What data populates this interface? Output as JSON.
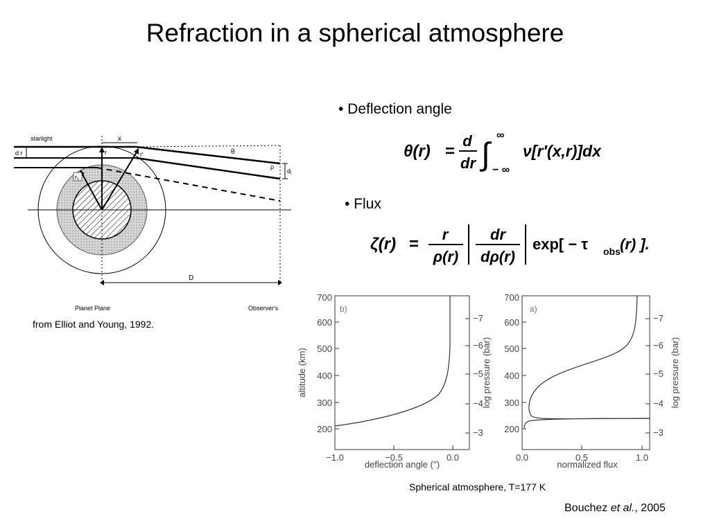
{
  "title": "Refraction in a spherical atmosphere",
  "bullets": {
    "deflection": "• Deflection angle",
    "flux": "• Flux"
  },
  "equations": {
    "deflection": {
      "lhs": "θ(r)",
      "eq": "=",
      "num": "d",
      "den": "dr",
      "upper": "∞",
      "lower": "− ∞",
      "integrand": "ν[r′(x,r)]dx"
    },
    "flux": {
      "lhs": "ζ(r)",
      "eq": "=",
      "num1": "r",
      "den1": "ρ(r)",
      "num2": "dr",
      "den2": "dρ(r)",
      "exp": "exp[ − τ",
      "sub": "obs",
      "tail": "(r) ]."
    }
  },
  "diagram": {
    "labels": {
      "starlight": "starlight",
      "dr": "d r",
      "x_top": "x",
      "r": "r",
      "r_prime": "r'",
      "theta": "θ",
      "rho": "ρ",
      "drho": "dρ",
      "r1": "r₁",
      "x_axis": "x",
      "D": "D",
      "planet_plane": "Planet Plane",
      "observer": "Observer's"
    },
    "credit": "from Elliot and Young, 1992."
  },
  "plots": {
    "caption": "Spherical atmosphere, T=177 K",
    "left": {
      "panel_label": "b)",
      "xlabel": "deflection angle ('')",
      "ylabel": "altitude (km)",
      "y2label": "log pressure (bar)",
      "xticks": [
        "−1.0",
        "−0.5",
        "0.0"
      ],
      "yticks": [
        "200",
        "300",
        "400",
        "500",
        "600",
        "700"
      ],
      "y2ticks": [
        "−7",
        "−6",
        "−5",
        "−4",
        "−3"
      ]
    },
    "right": {
      "panel_label": "a)",
      "xlabel": "normalized flux",
      "y2label": "log pressure (bar)",
      "xticks": [
        "0.0",
        "0.5",
        "1.0"
      ],
      "yticks": [
        "200",
        "300",
        "400",
        "500",
        "600",
        "700"
      ],
      "y2ticks": [
        "−7",
        "−6",
        "−5",
        "−4",
        "−3"
      ]
    }
  },
  "citation": {
    "before": "Bouchez ",
    "italic": "et al.",
    "after": ", 2005"
  }
}
